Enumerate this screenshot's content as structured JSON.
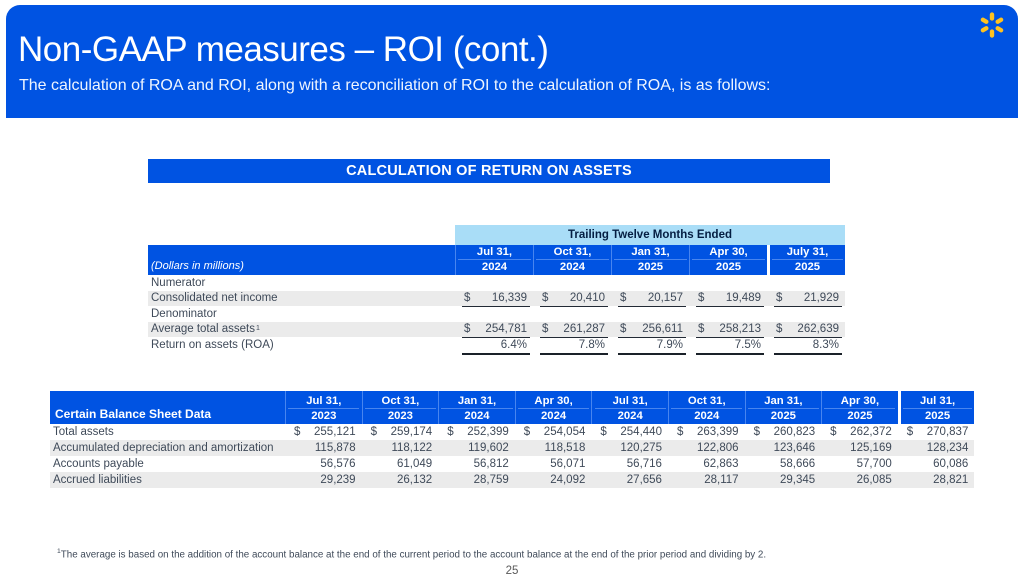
{
  "header": {
    "title": "Non-GAAP measures – ROI (cont.)",
    "subtitle": "The calculation of ROA and ROI, along with a reconciliation of ROI to the calculation of ROA, is as follows:",
    "logo": "walmart-spark-icon"
  },
  "roa_table": {
    "title": "CALCULATION OF RETURN ON ASSETS",
    "group_header": "Trailing Twelve Months Ended",
    "left_header": "(Dollars in millions)",
    "columns": [
      [
        "Jul 31,",
        "2024"
      ],
      [
        "Oct 31,",
        "2024"
      ],
      [
        "Jan 31,",
        "2025"
      ],
      [
        "Apr 30,",
        "2025"
      ],
      [
        "July 31,",
        "2025"
      ]
    ],
    "rows": [
      {
        "label": "Numerator",
        "type": "section"
      },
      {
        "label": "Consolidated net income",
        "dollar": true,
        "underline": "single",
        "values": [
          "16,339",
          "20,410",
          "20,157",
          "19,489",
          "21,929"
        ]
      },
      {
        "label": "Denominator",
        "type": "section"
      },
      {
        "label": "Average total assets",
        "sup": "1",
        "dollar": true,
        "underline": "single",
        "values": [
          "254,781",
          "261,287",
          "256,611",
          "258,213",
          "262,639"
        ]
      },
      {
        "label": "Return on assets (ROA)",
        "dollar": false,
        "underline": "double",
        "values": [
          "6.4%",
          "7.8%",
          "7.9%",
          "7.5%",
          "8.3%"
        ]
      }
    ]
  },
  "balance_table": {
    "left_header": "Certain Balance Sheet Data",
    "columns": [
      [
        "Jul 31,",
        "2023"
      ],
      [
        "Oct 31,",
        "2023"
      ],
      [
        "Jan 31,",
        "2024"
      ],
      [
        "Apr 30,",
        "2024"
      ],
      [
        "Jul 31,",
        "2024"
      ],
      [
        "Oct 31,",
        "2024"
      ],
      [
        "Jan 31,",
        "2025"
      ],
      [
        "Apr 30,",
        "2025"
      ],
      [
        "Jul 31,",
        "2025"
      ]
    ],
    "rows": [
      {
        "label": "Total assets",
        "dollar": true,
        "values": [
          "255,121",
          "259,174",
          "252,399",
          "254,054",
          "254,440",
          "263,399",
          "260,823",
          "262,372",
          "270,837"
        ]
      },
      {
        "label": "Accumulated depreciation and amortization",
        "values": [
          "115,878",
          "118,122",
          "119,602",
          "118,518",
          "120,275",
          "122,806",
          "123,646",
          "125,169",
          "128,234"
        ]
      },
      {
        "label": "Accounts payable",
        "values": [
          "56,576",
          "61,049",
          "56,812",
          "56,071",
          "56,716",
          "62,863",
          "58,666",
          "57,700",
          "60,086"
        ]
      },
      {
        "label": "Accrued liabilities",
        "values": [
          "29,239",
          "26,132",
          "28,759",
          "24,092",
          "27,656",
          "28,117",
          "29,345",
          "26,085",
          "28,821"
        ]
      }
    ]
  },
  "footnote": {
    "sup": "1",
    "text": "The average is based on the addition of the account balance at the end of the current period to the account balance at the end of the prior period and dividing by 2."
  },
  "page_number": "25",
  "misc": {
    "currency_symbol": "$"
  },
  "colors": {
    "brand_blue": "#0053E2",
    "sky_blue": "#A9DDF7",
    "navy_text": "#041E42",
    "spark_yellow": "#FFC220",
    "row_shade": "#EBEBEB",
    "body_text": "#3F4A59",
    "rule_dark": "#222A35"
  }
}
